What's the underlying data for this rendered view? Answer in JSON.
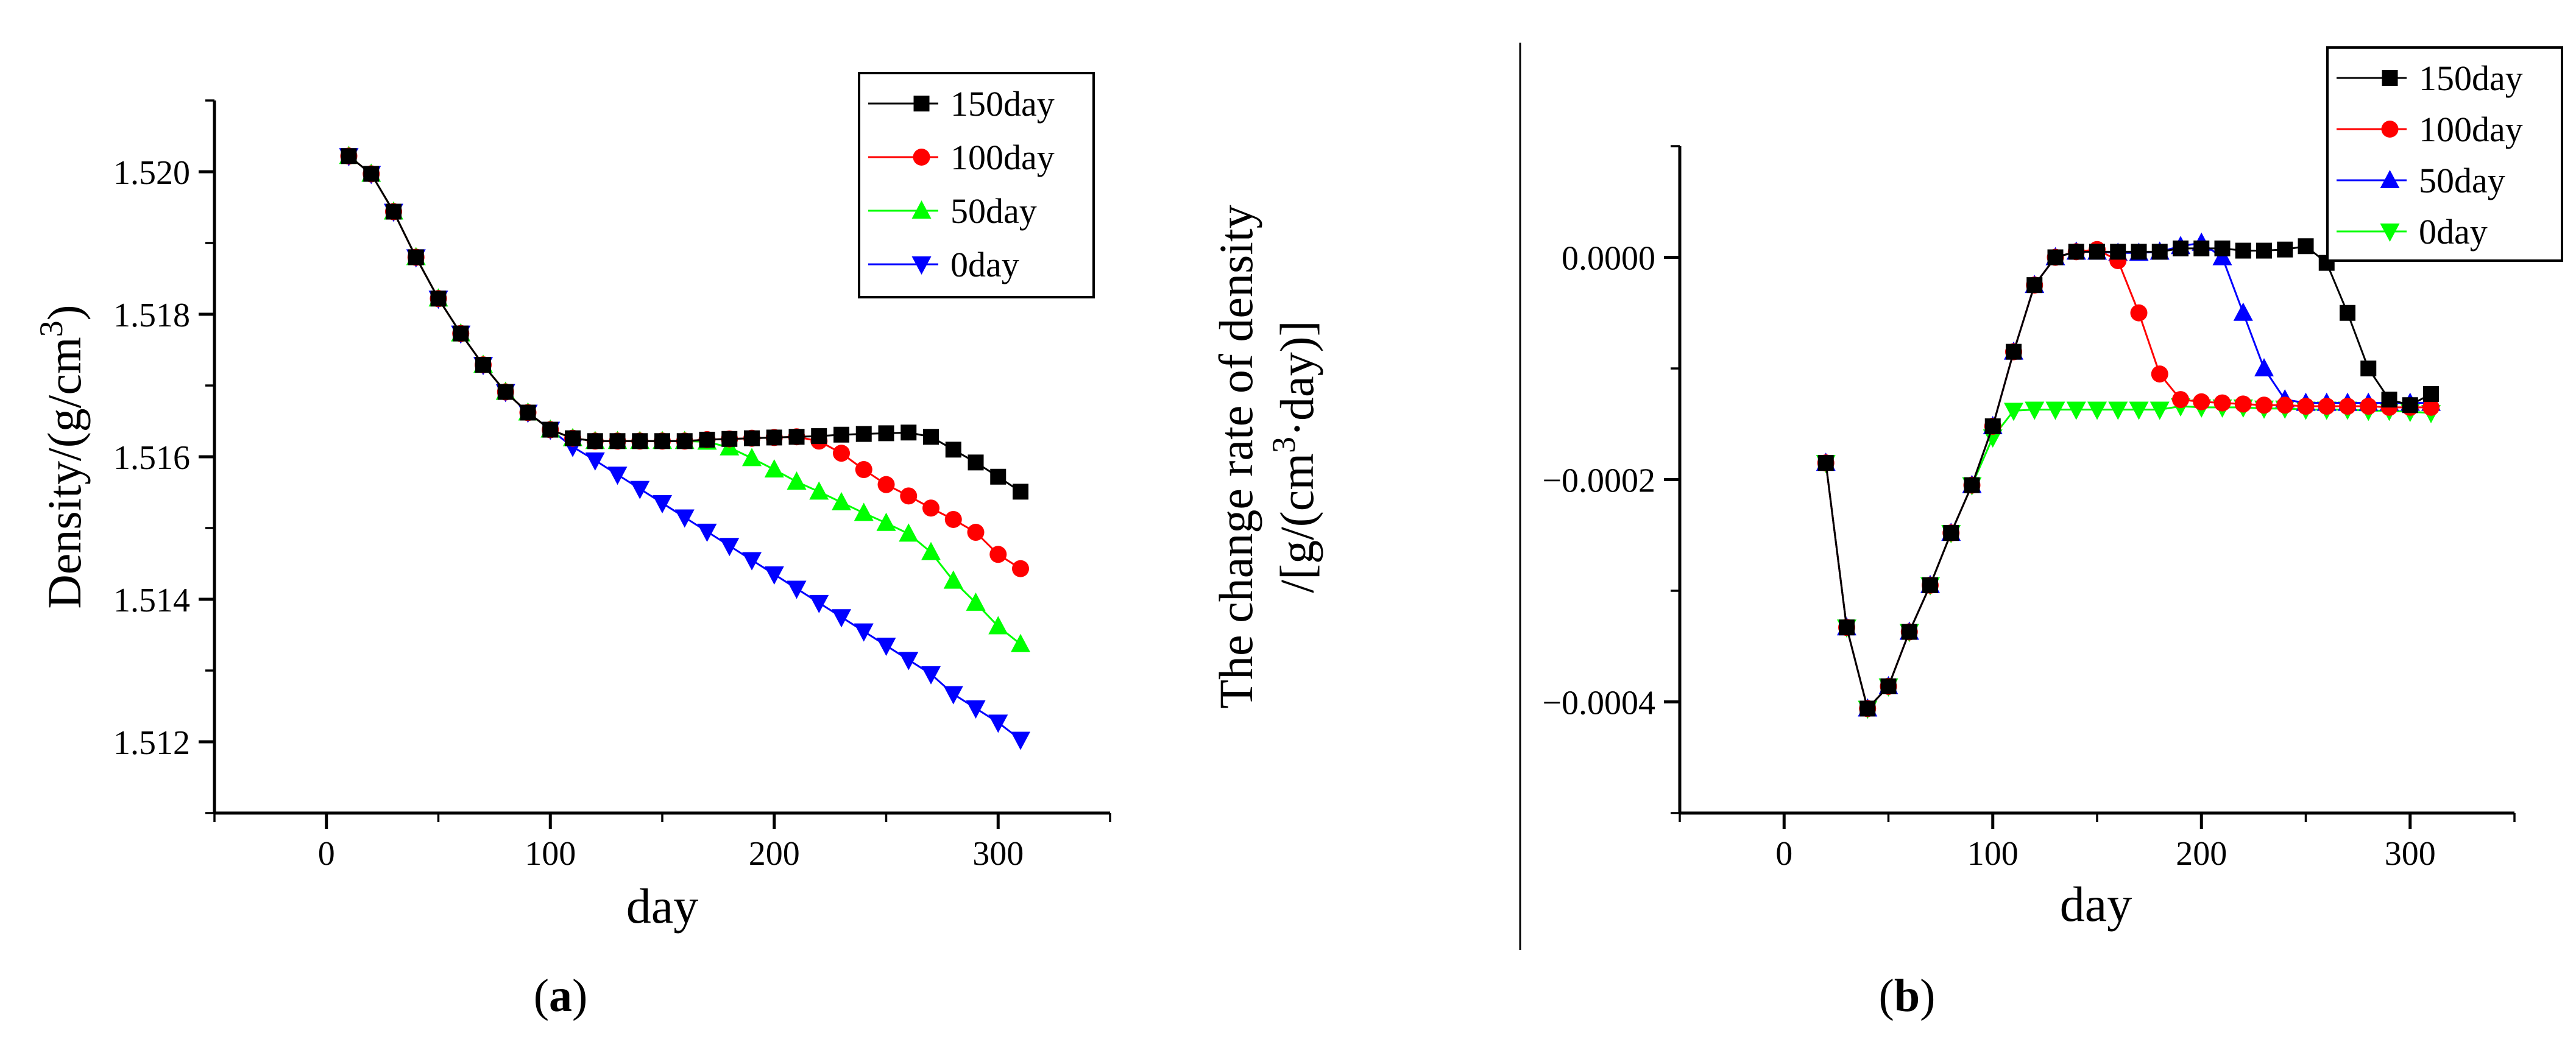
{
  "chart_data": [
    {
      "id": "a",
      "type": "line",
      "caption": "(a)",
      "caption_letter": "a",
      "xlabel": "day",
      "ylabel": "Density/(g/cm3)",
      "ylabel_parts": {
        "main": "Density/(g/cm",
        "sup": "3",
        "end": ")"
      },
      "xlim": [
        -50,
        350
      ],
      "ylim": [
        1.511,
        1.521
      ],
      "xticks": [
        0,
        100,
        200,
        300
      ],
      "yticks": [
        1.512,
        1.514,
        1.516,
        1.518,
        1.52
      ],
      "ytick_labels": [
        "1.512",
        "1.514",
        "1.516",
        "1.518",
        "1.520"
      ],
      "series": [
        {
          "name": "150day",
          "color": "#000000",
          "marker": "square",
          "x": [
            10,
            20,
            30,
            40,
            50,
            60,
            70,
            80,
            90,
            100,
            110,
            120,
            130,
            140,
            150,
            160,
            170,
            180,
            190,
            200,
            210,
            220,
            230,
            240,
            250,
            260,
            270,
            280,
            290,
            300,
            310
          ],
          "y": [
            1.52022,
            1.51997,
            1.51944,
            1.5188,
            1.51822,
            1.51773,
            1.51729,
            1.51691,
            1.51662,
            1.51638,
            1.51626,
            1.51622,
            1.51622,
            1.51622,
            1.51622,
            1.51622,
            1.51624,
            1.51625,
            1.51626,
            1.51627,
            1.51628,
            1.51629,
            1.51631,
            1.51632,
            1.51633,
            1.51634,
            1.51628,
            1.5161,
            1.51592,
            1.51572,
            1.51551
          ]
        },
        {
          "name": "100day",
          "color": "#ff0000",
          "marker": "circle",
          "x": [
            10,
            20,
            30,
            40,
            50,
            60,
            70,
            80,
            90,
            100,
            110,
            120,
            130,
            140,
            150,
            160,
            170,
            180,
            190,
            200,
            210,
            220,
            230,
            240,
            250,
            260,
            270,
            280,
            290,
            300,
            310
          ],
          "y": [
            1.52022,
            1.51997,
            1.51944,
            1.5188,
            1.51822,
            1.51773,
            1.51729,
            1.51691,
            1.51662,
            1.51638,
            1.51626,
            1.51622,
            1.51622,
            1.51622,
            1.51622,
            1.51622,
            1.51624,
            1.51625,
            1.51626,
            1.51627,
            1.51628,
            1.51622,
            1.51605,
            1.51582,
            1.51561,
            1.51545,
            1.51528,
            1.51512,
            1.51494,
            1.51463,
            1.51443
          ]
        },
        {
          "name": "50day",
          "color": "#00ff00",
          "marker": "triangle-up",
          "x": [
            10,
            20,
            30,
            40,
            50,
            60,
            70,
            80,
            90,
            100,
            110,
            120,
            130,
            140,
            150,
            160,
            170,
            180,
            190,
            200,
            210,
            220,
            230,
            240,
            250,
            260,
            270,
            280,
            290,
            300,
            310
          ],
          "y": [
            1.52022,
            1.51997,
            1.51944,
            1.5188,
            1.51822,
            1.51773,
            1.51729,
            1.51691,
            1.51662,
            1.51638,
            1.51626,
            1.51622,
            1.51622,
            1.51622,
            1.51622,
            1.51622,
            1.51621,
            1.51613,
            1.51598,
            1.51582,
            1.51565,
            1.51551,
            1.51536,
            1.51521,
            1.51507,
            1.51492,
            1.51466,
            1.51426,
            1.51395,
            1.51362,
            1.51337
          ]
        },
        {
          "name": "0day",
          "color": "#0000ff",
          "marker": "triangle-down",
          "x": [
            10,
            20,
            30,
            40,
            50,
            60,
            70,
            80,
            90,
            100,
            110,
            120,
            130,
            140,
            150,
            160,
            170,
            180,
            190,
            200,
            210,
            220,
            230,
            240,
            250,
            260,
            270,
            280,
            290,
            300,
            310
          ],
          "y": [
            1.52022,
            1.51997,
            1.51944,
            1.5188,
            1.51822,
            1.51773,
            1.51729,
            1.51691,
            1.51662,
            1.51638,
            1.51614,
            1.51595,
            1.51575,
            1.51555,
            1.51535,
            1.51515,
            1.51495,
            1.51475,
            1.51455,
            1.51435,
            1.51415,
            1.51395,
            1.51375,
            1.51355,
            1.51335,
            1.51315,
            1.51295,
            1.51267,
            1.51247,
            1.51227,
            1.51203
          ]
        }
      ],
      "legend": "top-right"
    },
    {
      "id": "b",
      "type": "line",
      "caption": "(b)",
      "caption_letter": "b",
      "xlabel": "day",
      "ylabel_line1": "The change rate of density",
      "ylabel_line2_parts": {
        "main": "/[g/(cm",
        "sup": "3",
        "end": "·day)]"
      },
      "xlim": [
        -50,
        350
      ],
      "ylim": [
        -0.0005,
        0.0001
      ],
      "xticks": [
        0,
        100,
        200,
        300
      ],
      "yticks": [
        -0.0004,
        -0.0002,
        0.0
      ],
      "ytick_labels": [
        "−0.0004",
        "−0.0002",
        "0.0000"
      ],
      "series": [
        {
          "name": "150day",
          "color": "#000000",
          "marker": "square",
          "x": [
            20,
            30,
            40,
            50,
            60,
            70,
            80,
            90,
            100,
            110,
            120,
            130,
            140,
            150,
            160,
            170,
            180,
            190,
            200,
            210,
            220,
            230,
            240,
            250,
            260,
            270,
            280,
            290,
            300,
            310
          ],
          "y": [
            -0.000185,
            -0.000333,
            -0.000406,
            -0.000386,
            -0.000337,
            -0.000295,
            -0.000248,
            -0.000205,
            -0.000152,
            -8.5e-05,
            -2.5e-05,
            0.0,
            5e-06,
            5e-06,
            5e-06,
            5e-06,
            5e-06,
            8e-06,
            8e-06,
            8e-06,
            6e-06,
            6e-06,
            7e-06,
            1e-05,
            -5e-06,
            -5e-05,
            -0.0001,
            -0.000128,
            -0.000133,
            -0.000123
          ]
        },
        {
          "name": "100day",
          "color": "#ff0000",
          "marker": "circle",
          "x": [
            20,
            30,
            40,
            50,
            60,
            70,
            80,
            90,
            100,
            110,
            120,
            130,
            140,
            150,
            160,
            170,
            180,
            190,
            200,
            210,
            220,
            230,
            240,
            250,
            260,
            270,
            280,
            290,
            300,
            310
          ],
          "y": [
            -0.000185,
            -0.000333,
            -0.000406,
            -0.000386,
            -0.000337,
            -0.000295,
            -0.000248,
            -0.000205,
            -0.000152,
            -8.5e-05,
            -2.5e-05,
            0.0,
            5e-06,
            7e-06,
            -3e-06,
            -5e-05,
            -0.000105,
            -0.000128,
            -0.00013,
            -0.000131,
            -0.000132,
            -0.000133,
            -0.000133,
            -0.000134,
            -0.000134,
            -0.000134,
            -0.000134,
            -0.000135,
            -0.000135,
            -0.000135
          ]
        },
        {
          "name": "50day",
          "color": "#0000ff",
          "marker": "triangle-up",
          "x": [
            20,
            30,
            40,
            50,
            60,
            70,
            80,
            90,
            100,
            110,
            120,
            130,
            140,
            150,
            160,
            170,
            180,
            190,
            200,
            210,
            220,
            230,
            240,
            250,
            260,
            270,
            280,
            290,
            300,
            310
          ],
          "y": [
            -0.000185,
            -0.000333,
            -0.000406,
            -0.000386,
            -0.000337,
            -0.000295,
            -0.000248,
            -0.000205,
            -0.000152,
            -8.5e-05,
            -2.5e-05,
            0.0,
            5e-06,
            5e-06,
            4e-06,
            4e-06,
            5e-06,
            1e-05,
            1.3e-05,
            0.0,
            -5e-05,
            -0.0001,
            -0.000128,
            -0.000131,
            -0.000131,
            -0.000131,
            -0.000131,
            -0.000131,
            -0.000131,
            -0.000131
          ]
        },
        {
          "name": "0day",
          "color": "#00ff00",
          "marker": "triangle-down",
          "x": [
            20,
            30,
            40,
            50,
            60,
            70,
            80,
            90,
            100,
            110,
            120,
            130,
            140,
            150,
            160,
            170,
            180,
            190,
            200,
            210,
            220,
            230,
            240,
            250,
            260,
            270,
            280,
            290,
            300,
            310
          ],
          "y": [
            -0.000185,
            -0.000333,
            -0.000406,
            -0.000386,
            -0.000337,
            -0.000295,
            -0.000248,
            -0.000205,
            -0.000162,
            -0.000138,
            -0.000137,
            -0.000137,
            -0.000137,
            -0.000137,
            -0.000137,
            -0.000137,
            -0.000137,
            -0.000134,
            -0.000135,
            -0.000135,
            -0.000135,
            -0.000136,
            -0.000136,
            -0.000137,
            -0.000137,
            -0.000137,
            -0.000138,
            -0.000138,
            -0.000139,
            -0.00014
          ]
        }
      ],
      "legend": "top-right"
    }
  ]
}
